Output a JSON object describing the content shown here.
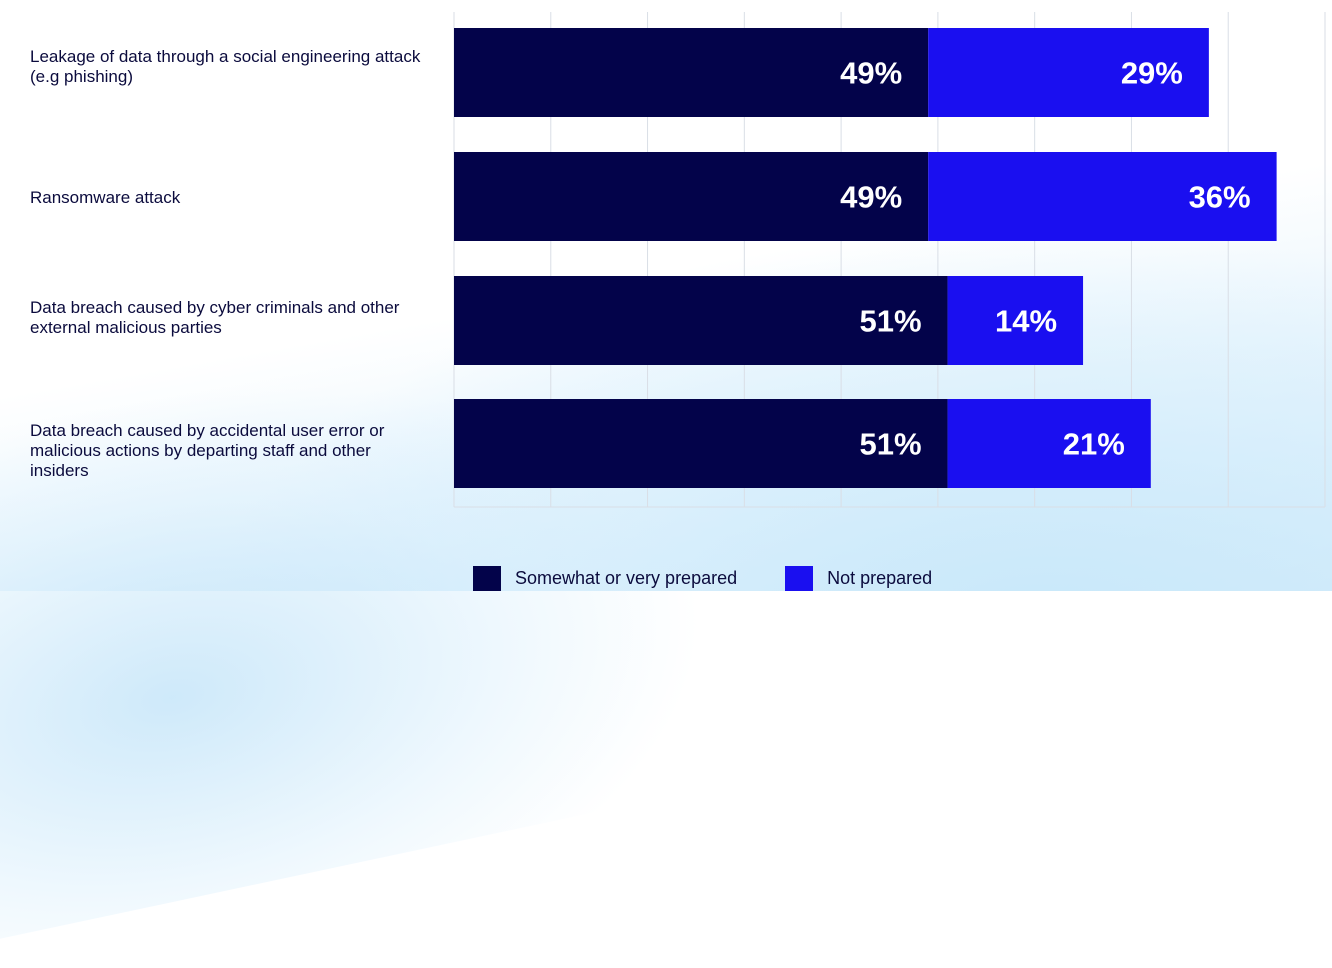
{
  "chart_data": {
    "type": "bar",
    "orientation": "horizontal",
    "stacked": true,
    "categories": [
      "Leakage of data through a social engineering attack (e.g phishing)",
      "Ransomware attack",
      "Data breach caused by cyber criminals and other external malicious parties",
      "Data breach caused by accidental user error or malicious actions by departing staff and other insiders"
    ],
    "series": [
      {
        "name": "Somewhat or very prepared",
        "values": [
          49,
          49,
          51,
          51
        ],
        "labels": [
          "49%",
          "49%",
          "51%",
          "51%"
        ],
        "color": "#03034a"
      },
      {
        "name": "Not prepared",
        "values": [
          29,
          36,
          14,
          21
        ],
        "labels": [
          "29%",
          "36%",
          "14%",
          "21%"
        ],
        "color": "#1a0ff0"
      }
    ],
    "xlim": [
      0,
      90
    ],
    "grid": true,
    "legend_position": "bottom"
  }
}
